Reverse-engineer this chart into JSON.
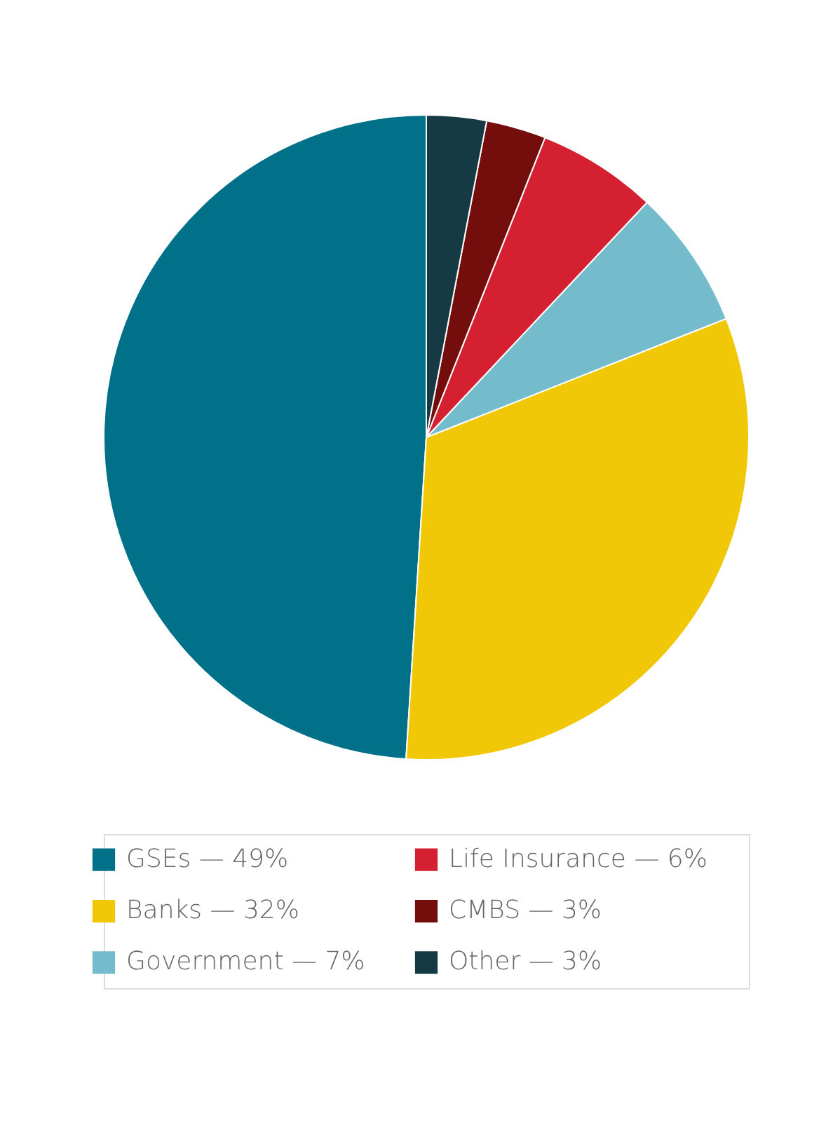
{
  "chart_data": {
    "type": "pie",
    "categories": [
      "GSEs — 49%",
      "Banks — 32%",
      "Government — 7%",
      "Life Insurance — 6%",
      "CMBS — 3%",
      "Other — 3%"
    ],
    "values": [
      49,
      32,
      7,
      6,
      3,
      3
    ],
    "colors": [
      "#007189",
      "#f0c808",
      "#74bccc",
      "#d42030",
      "#740e0c",
      "#153a44"
    ],
    "legend": "bottom"
  }
}
